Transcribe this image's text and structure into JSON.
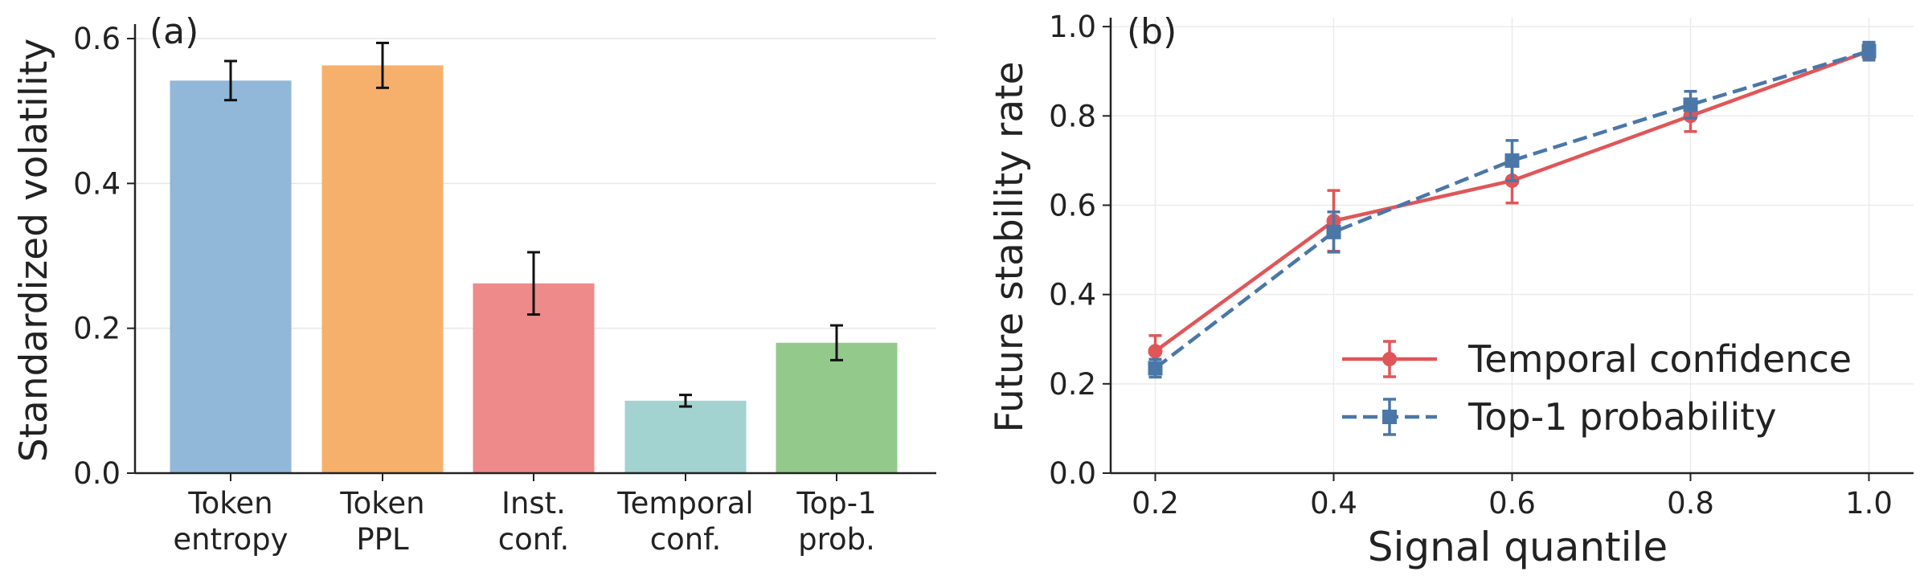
{
  "chart_data": [
    {
      "type": "bar",
      "panel_label": "(a)",
      "ylabel": "Standardized volatility",
      "xlabel": "",
      "categories": [
        "Token entropy",
        "Token PPL",
        "Inst. conf.",
        "Temporal conf.",
        "Top-1 prob."
      ],
      "category_lines": [
        [
          "Token",
          "entropy"
        ],
        [
          "Token",
          "PPL"
        ],
        [
          "Inst.",
          "conf."
        ],
        [
          "Temporal",
          "conf."
        ],
        [
          "Top-1",
          "prob."
        ]
      ],
      "values": [
        0.542,
        0.563,
        0.262,
        0.1,
        0.18
      ],
      "errors": [
        0.027,
        0.031,
        0.043,
        0.008,
        0.024
      ],
      "colors": [
        "#91b7d9",
        "#f6b06b",
        "#ee8a8a",
        "#a2d3d1",
        "#93c98b"
      ],
      "ylim": [
        0,
        0.62
      ],
      "yticks": [
        0.0,
        0.2,
        0.4,
        0.6
      ],
      "ytick_labels": [
        "0.0",
        "0.2",
        "0.4",
        "0.6"
      ],
      "grid": "y"
    },
    {
      "type": "line",
      "panel_label": "(b)",
      "ylabel": "Future stability rate",
      "xlabel": "Signal quantile",
      "x": [
        0.2,
        0.4,
        0.6,
        0.8,
        1.0
      ],
      "xlim": [
        0.15,
        1.05
      ],
      "ylim": [
        0,
        1.02
      ],
      "xticks": [
        0.2,
        0.4,
        0.6,
        0.8,
        1.0
      ],
      "xtick_labels": [
        "0.2",
        "0.4",
        "0.6",
        "0.8",
        "1.0"
      ],
      "yticks": [
        0.0,
        0.2,
        0.4,
        0.6,
        0.8,
        1.0
      ],
      "ytick_labels": [
        "0.0",
        "0.2",
        "0.4",
        "0.6",
        "0.8",
        "1.0"
      ],
      "grid": "both",
      "legend_position": "lower-right",
      "series": [
        {
          "name": "Temporal confidence",
          "values": [
            0.273,
            0.565,
            0.655,
            0.8,
            0.945
          ],
          "errors": [
            0.035,
            0.068,
            0.05,
            0.035,
            0.018
          ],
          "color": "#e05658",
          "marker": "circle",
          "linestyle": "solid"
        },
        {
          "name": "Top-1 probability",
          "values": [
            0.235,
            0.54,
            0.7,
            0.825,
            0.945
          ],
          "errors": [
            0.02,
            0.045,
            0.045,
            0.03,
            0.02
          ],
          "color": "#4a77a8",
          "marker": "square",
          "linestyle": "dashed"
        }
      ]
    }
  ]
}
